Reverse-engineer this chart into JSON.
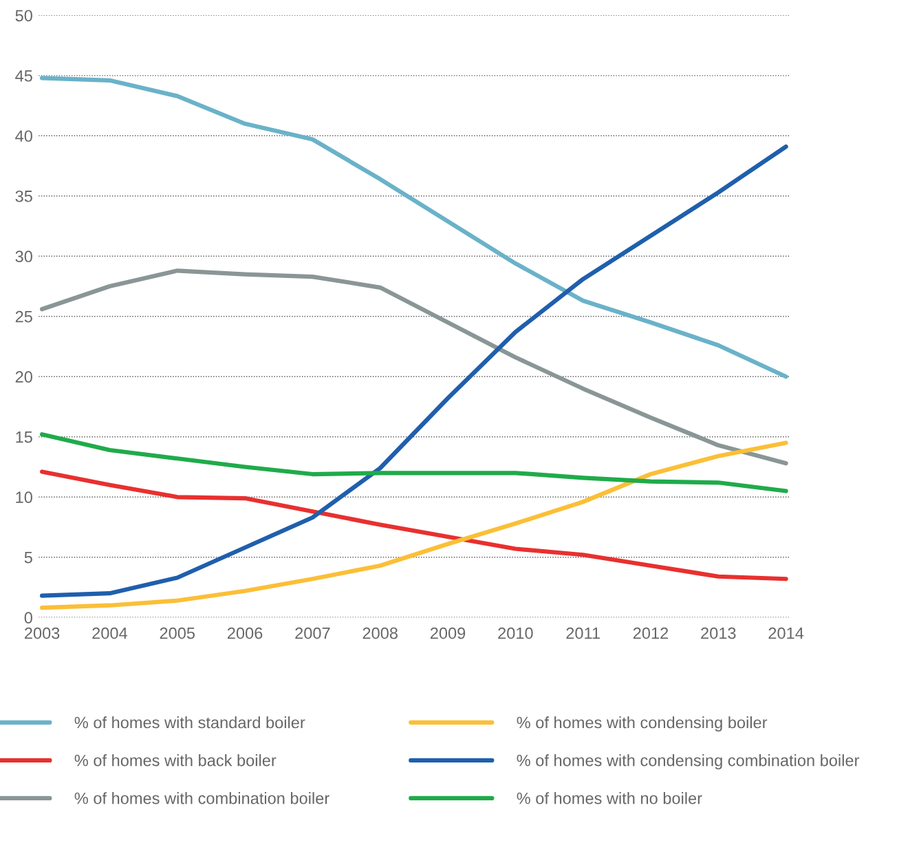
{
  "chart_data": {
    "type": "line",
    "categories": [
      "2003",
      "2004",
      "2005",
      "2006",
      "2007",
      "2008",
      "2009",
      "2010",
      "2011",
      "2012",
      "2013",
      "2014"
    ],
    "ylim": [
      0,
      50
    ],
    "yticks": [
      0,
      5,
      10,
      15,
      20,
      25,
      30,
      35,
      40,
      45,
      50
    ],
    "grid": "y",
    "legend": "bottom",
    "marker": "none",
    "line_style": "solid",
    "series": [
      {
        "name": "% of homes with standard boiler",
        "color": "#6ab2c9",
        "values": [
          44.8,
          44.6,
          43.3,
          41.0,
          39.7,
          36.4,
          32.9,
          29.4,
          26.3,
          24.5,
          22.6,
          20.0
        ]
      },
      {
        "name": "% of homes with back boiler",
        "color": "#e8302f",
        "values": [
          12.1,
          11.0,
          10.0,
          9.9,
          8.8,
          7.7,
          6.7,
          5.7,
          5.2,
          4.3,
          3.4,
          3.2
        ]
      },
      {
        "name": "% of homes with combination boiler",
        "color": "#8a9696",
        "values": [
          25.6,
          27.5,
          28.8,
          28.5,
          28.3,
          27.4,
          24.5,
          21.6,
          19.0,
          16.6,
          14.3,
          12.8
        ]
      },
      {
        "name": "% of homes with condensing boiler",
        "color": "#fbbf37",
        "values": [
          0.8,
          1.0,
          1.4,
          2.2,
          3.2,
          4.3,
          6.1,
          7.8,
          9.6,
          11.9,
          13.4,
          14.5
        ]
      },
      {
        "name": "% of homes with condensing combination boiler",
        "color": "#1f5fad",
        "values": [
          1.8,
          2.0,
          3.3,
          5.8,
          8.3,
          12.4,
          18.2,
          23.7,
          28.1,
          31.7,
          35.3,
          39.1
        ]
      },
      {
        "name": "% of homes with no boiler",
        "color": "#1fab4a",
        "values": [
          15.2,
          13.9,
          13.2,
          12.5,
          11.9,
          12.0,
          12.0,
          12.0,
          11.6,
          11.3,
          11.2,
          10.5
        ]
      }
    ]
  }
}
